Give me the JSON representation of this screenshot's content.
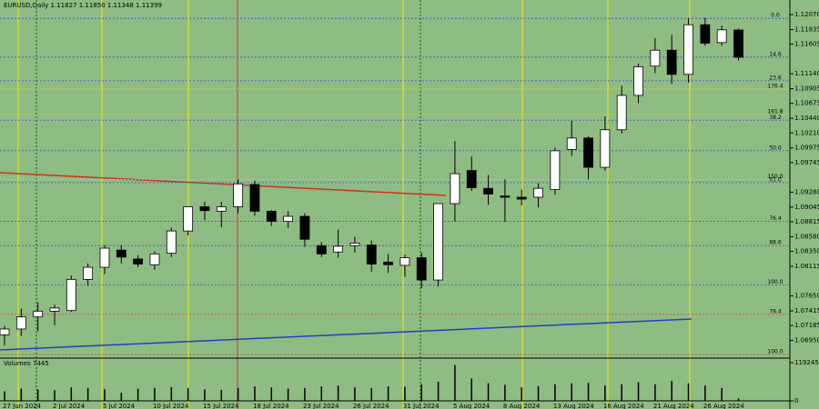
{
  "chart_data": [
    {
      "type": "candlestick",
      "title": "EURUSD,Daily 1.11827 1.11850 1.11348 1.11399",
      "categories": [
        "27 Jun 2024",
        null,
        null,
        "2 Jul 2024",
        null,
        null,
        "5 Jul 2024",
        null,
        null,
        "10 Jul 2024",
        null,
        null,
        "15 Jul 2024",
        null,
        null,
        "18 Jul 2024",
        null,
        null,
        "23 Jul 2024",
        null,
        null,
        "26 Jul 2024",
        null,
        null,
        "31 Jul 2024",
        null,
        null,
        "5 Aug 2024",
        null,
        null,
        "8 Aug 2024",
        null,
        null,
        "13 Aug 2024",
        null,
        null,
        "16 Aug 2024",
        null,
        null,
        "21 Aug 2024",
        null,
        null,
        "26 Aug 2024",
        null,
        null
      ],
      "open": [
        1.0704,
        1.0713,
        1.0732,
        1.0741,
        1.0742,
        1.0791,
        1.081,
        1.0837,
        1.0823,
        1.0814,
        1.0832,
        1.0867,
        1.0905,
        1.0898,
        1.0905,
        1.094,
        1.0898,
        1.0882,
        1.089,
        1.0844,
        1.0834,
        1.0844,
        1.0845,
        1.0818,
        1.0813,
        1.0825,
        1.079,
        1.091,
        1.0962,
        1.0934,
        1.0922,
        1.092,
        1.092,
        1.0932,
        1.0995,
        1.1013,
        1.0967,
        1.1026,
        1.108,
        1.1126,
        1.1151,
        1.1113,
        1.1191,
        1.1163,
        1.11827
      ],
      "high": [
        1.0718,
        1.0745,
        1.0755,
        1.0751,
        1.0797,
        1.0816,
        1.0845,
        1.0845,
        1.0829,
        1.0835,
        1.0872,
        1.0905,
        1.0913,
        1.0913,
        1.0948,
        1.0946,
        1.09,
        1.0898,
        1.0895,
        1.085,
        1.0869,
        1.0858,
        1.0852,
        1.0831,
        1.083,
        1.0833,
        1.091,
        1.1008,
        1.0984,
        1.0955,
        1.0948,
        1.0932,
        1.0942,
        1.0998,
        1.104,
        1.1016,
        1.1047,
        1.1095,
        1.113,
        1.117,
        1.1175,
        1.1201,
        1.1202,
        1.119,
        1.1185
      ],
      "low": [
        1.0687,
        1.0702,
        1.071,
        1.0719,
        1.074,
        1.0781,
        1.0799,
        1.0816,
        1.081,
        1.0806,
        1.0826,
        1.086,
        1.0884,
        1.0873,
        1.0895,
        1.0891,
        1.0875,
        1.0872,
        1.0842,
        1.0826,
        1.0825,
        1.0833,
        1.0803,
        1.0801,
        1.0795,
        1.0777,
        1.078,
        1.0882,
        1.093,
        1.0908,
        1.0881,
        1.0907,
        1.0904,
        1.0924,
        1.0985,
        1.0948,
        1.0962,
        1.102,
        1.1068,
        1.1115,
        1.1098,
        1.11,
        1.1158,
        1.1158,
        1.11348
      ],
      "close": [
        1.0713,
        1.0732,
        1.0741,
        1.0746,
        1.0791,
        1.081,
        1.084,
        1.0826,
        1.0815,
        1.0831,
        1.0867,
        1.0905,
        1.0899,
        1.0905,
        1.0941,
        1.0898,
        1.0882,
        1.089,
        1.0854,
        1.0831,
        1.0843,
        1.0848,
        1.0815,
        1.0814,
        1.0825,
        1.079,
        1.091,
        1.0957,
        1.0935,
        1.0925,
        1.092,
        1.0917,
        1.0934,
        1.0993,
        1.1013,
        1.0967,
        1.1026,
        1.108,
        1.1125,
        1.1151,
        1.1113,
        1.1191,
        1.1162,
        1.1183,
        1.11399
      ],
      "ylim": [
        1.0673,
        1.1227
      ],
      "yticks": [
        {
          "value": 1.1207,
          "label": "1.12070"
        },
        {
          "value": 1.11835,
          "label": "1.11835"
        },
        {
          "value": 1.11605,
          "label": "1.11605"
        },
        {
          "value": 1.1114,
          "label": "1.11140"
        },
        {
          "value": 1.10905,
          "label": "1.10905"
        },
        {
          "value": 1.10675,
          "label": "1.10675"
        },
        {
          "value": 1.1044,
          "label": "1.10440"
        },
        {
          "value": 1.1021,
          "label": "1.10210"
        },
        {
          "value": 1.09975,
          "label": "1.09975"
        },
        {
          "value": 1.09745,
          "label": "1.09745"
        },
        {
          "value": 1.0928,
          "label": "1.09280"
        },
        {
          "value": 1.09045,
          "label": "1.09045"
        },
        {
          "value": 1.08815,
          "label": "1.08815"
        },
        {
          "value": 1.0858,
          "label": "1.08580"
        },
        {
          "value": 1.0835,
          "label": "1.08350"
        },
        {
          "value": 1.08115,
          "label": "1.08115"
        },
        {
          "value": 1.0765,
          "label": "1.07650"
        },
        {
          "value": 1.07415,
          "label": "1.07415"
        },
        {
          "value": 1.07185,
          "label": "1.07185"
        },
        {
          "value": 1.0695,
          "label": "1.06950"
        }
      ],
      "fib_levels": [
        {
          "label": "0.0",
          "value": 1.1201,
          "color": "#3050d0"
        },
        {
          "label": "14.6",
          "value": 1.114,
          "color": "#3050d0"
        },
        {
          "label": "23.6",
          "value": 1.1103,
          "color": "#3050d0"
        },
        {
          "label": "38.2",
          "value": 1.1041,
          "color": "#3050d0"
        },
        {
          "label": "50.0",
          "value": 1.0993,
          "color": "#3050d0"
        },
        {
          "label": "61.8",
          "value": 1.0943,
          "color": "#3050d0"
        },
        {
          "label": "76.4",
          "value": 1.0882,
          "color": "#3050d0"
        },
        {
          "label": "88.6",
          "value": 1.0844,
          "color": "#3050d0"
        },
        {
          "label": "100.0",
          "value": 1.0782,
          "color": "#3050d0"
        },
        {
          "label": "176.4",
          "value": 1.109,
          "color": "#d8d040"
        },
        {
          "label": "161.8",
          "value": 1.105,
          "color": "#d8d040"
        },
        {
          "label": "150.0",
          "value": 1.0948,
          "color": "#d8d040"
        },
        {
          "label": "76.4",
          "value": 1.0736,
          "color": "#d04040"
        },
        {
          "label": "100.0",
          "value": 1.0673,
          "color": "#d04040"
        }
      ],
      "bull_color": "#ffffff",
      "bear_color": "#000000"
    },
    {
      "type": "bar",
      "title": "Volumes 7445",
      "values": [
        30000,
        38000,
        35000,
        33000,
        42000,
        40000,
        36000,
        25000,
        38000,
        40000,
        42000,
        40000,
        36000,
        34000,
        40000,
        45000,
        42000,
        38000,
        40000,
        45000,
        48000,
        42000,
        40000,
        45000,
        44000,
        52000,
        60000,
        112000,
        70000,
        55000,
        50000,
        42000,
        46000,
        52000,
        55000,
        56000,
        48000,
        52000,
        58000,
        52000,
        62000,
        55000,
        48000,
        40000,
        7445
      ],
      "ylim": [
        0,
        119245
      ],
      "yticks": [
        0,
        119245
      ],
      "color": "#000000"
    }
  ]
}
